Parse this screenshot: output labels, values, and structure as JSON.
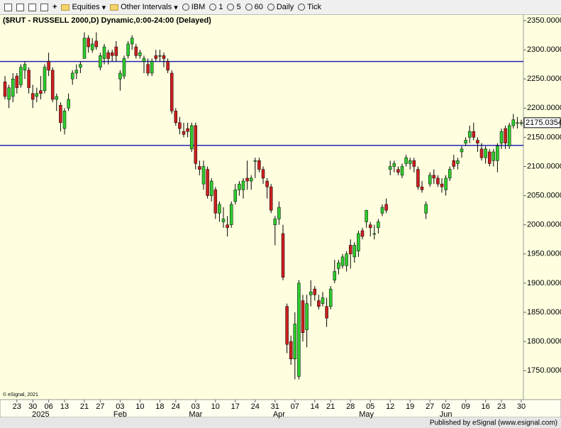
{
  "toolbar": {
    "items": [
      "Equities",
      "Other Intervals",
      "IBM",
      "1",
      "5",
      "60",
      "Daily",
      "Tick"
    ]
  },
  "chart_data": {
    "type": "candlestick",
    "title": "($RUT - RUSSELL 2000,D) Dynamic,0:00-24:00 (Delayed)",
    "watermark": "© eSignal, 2021",
    "up_color": "#2ecc2e",
    "down_color": "#cc1f1f",
    "ohlc": [
      [
        2245,
        2255,
        2215,
        2220
      ],
      [
        2215,
        2240,
        2200,
        2235
      ],
      [
        2220,
        2260,
        2210,
        2250
      ],
      [
        2255,
        2260,
        2225,
        2235
      ],
      [
        2240,
        2275,
        2235,
        2270
      ],
      [
        2265,
        2280,
        2250,
        2275
      ],
      [
        2265,
        2270,
        2225,
        2235
      ],
      [
        2225,
        2240,
        2200,
        2215
      ],
      [
        2220,
        2235,
        2210,
        2225
      ],
      [
        2230,
        2255,
        2215,
        2225
      ],
      [
        2230,
        2275,
        2225,
        2270
      ],
      [
        2280,
        2295,
        2255,
        2265
      ],
      [
        2265,
        2270,
        2210,
        2215
      ],
      [
        2215,
        2225,
        2195,
        2220
      ],
      [
        2205,
        2210,
        2160,
        2175
      ],
      [
        2165,
        2200,
        2155,
        2195
      ],
      [
        2200,
        2225,
        2195,
        2215
      ],
      [
        2250,
        2265,
        2240,
        2260
      ],
      [
        2260,
        2275,
        2250,
        2265
      ],
      [
        2270,
        2280,
        2260,
        2275
      ],
      [
        2285,
        2330,
        2285,
        2320
      ],
      [
        2320,
        2325,
        2295,
        2305
      ],
      [
        2300,
        2320,
        2295,
        2310
      ],
      [
        2315,
        2330,
        2300,
        2305
      ],
      [
        2270,
        2295,
        2265,
        2290
      ],
      [
        2285,
        2310,
        2275,
        2305
      ],
      [
        2295,
        2300,
        2275,
        2285
      ],
      [
        2295,
        2300,
        2280,
        2290
      ],
      [
        2305,
        2315,
        2280,
        2290
      ],
      [
        2250,
        2265,
        2230,
        2260
      ],
      [
        2255,
        2290,
        2250,
        2285
      ],
      [
        2290,
        2315,
        2285,
        2310
      ],
      [
        2310,
        2325,
        2300,
        2320
      ],
      [
        2305,
        2310,
        2285,
        2290
      ],
      [
        2290,
        2300,
        2285,
        2295
      ],
      [
        2280,
        2290,
        2260,
        2285
      ],
      [
        2275,
        2285,
        2255,
        2260
      ],
      [
        2260,
        2285,
        2255,
        2280
      ],
      [
        2290,
        2300,
        2280,
        2285
      ],
      [
        2290,
        2300,
        2280,
        2290
      ],
      [
        2290,
        2295,
        2270,
        2285
      ],
      [
        2280,
        2285,
        2260,
        2265
      ],
      [
        2260,
        2265,
        2190,
        2195
      ],
      [
        2195,
        2200,
        2170,
        2175
      ],
      [
        2175,
        2185,
        2155,
        2165
      ],
      [
        2160,
        2175,
        2150,
        2155
      ],
      [
        2165,
        2175,
        2150,
        2160
      ],
      [
        2130,
        2175,
        2125,
        2170
      ],
      [
        2170,
        2175,
        2095,
        2105
      ],
      [
        2100,
        2110,
        2085,
        2095
      ],
      [
        2070,
        2110,
        2060,
        2100
      ],
      [
        2095,
        2100,
        2045,
        2050
      ],
      [
        2050,
        2080,
        2040,
        2075
      ],
      [
        2060,
        2065,
        2010,
        2020
      ],
      [
        2020,
        2040,
        2005,
        2035
      ],
      [
        2005,
        2030,
        1995,
        2010
      ],
      [
        2000,
        2015,
        1980,
        1995
      ],
      [
        2000,
        2040,
        1995,
        2035
      ],
      [
        2040,
        2070,
        2035,
        2060
      ],
      [
        2060,
        2075,
        2050,
        2070
      ],
      [
        2060,
        2080,
        2045,
        2075
      ],
      [
        2080,
        2110,
        2060,
        2075
      ],
      [
        2075,
        2085,
        2060,
        2080
      ],
      [
        2110,
        2115,
        2080,
        2110
      ],
      [
        2110,
        2115,
        2090,
        2095
      ],
      [
        2095,
        2100,
        2070,
        2080
      ],
      [
        2075,
        2080,
        2045,
        2065
      ],
      [
        2065,
        2070,
        2020,
        2025
      ],
      [
        2000,
        2015,
        1965,
        2010
      ],
      [
        2010,
        2040,
        2000,
        2030
      ],
      [
        1985,
        2000,
        1905,
        1910
      ],
      [
        1860,
        1865,
        1780,
        1795
      ],
      [
        1800,
        1810,
        1760,
        1770
      ],
      [
        1770,
        1850,
        1735,
        1830
      ],
      [
        1740,
        1905,
        1735,
        1900
      ],
      [
        1870,
        1880,
        1800,
        1815
      ],
      [
        1820,
        1880,
        1790,
        1865
      ],
      [
        1880,
        1905,
        1860,
        1885
      ],
      [
        1890,
        1895,
        1870,
        1880
      ],
      [
        1870,
        1880,
        1855,
        1860
      ],
      [
        1865,
        1885,
        1860,
        1875
      ],
      [
        1860,
        1875,
        1825,
        1840
      ],
      [
        1860,
        1895,
        1855,
        1890
      ],
      [
        1905,
        1940,
        1900,
        1920
      ],
      [
        1925,
        1940,
        1915,
        1935
      ],
      [
        1930,
        1950,
        1925,
        1945
      ],
      [
        1930,
        1955,
        1920,
        1950
      ],
      [
        1965,
        1975,
        1925,
        1950
      ],
      [
        1945,
        1970,
        1935,
        1965
      ],
      [
        1955,
        1990,
        1945,
        1985
      ],
      [
        1990,
        1995,
        1975,
        1980
      ],
      [
        2005,
        2025,
        1995,
        2025
      ],
      [
        2000,
        2005,
        1980,
        1995
      ],
      [
        1985,
        2000,
        1975,
        1985
      ],
      [
        1995,
        2010,
        1985,
        2005
      ],
      [
        2020,
        2035,
        2015,
        2030
      ],
      [
        2035,
        2045,
        2020,
        2025
      ],
      [
        2095,
        2110,
        2085,
        2100
      ],
      [
        2100,
        2110,
        2090,
        2105
      ],
      [
        2095,
        2100,
        2085,
        2090
      ],
      [
        2085,
        2105,
        2080,
        2100
      ],
      [
        2105,
        2120,
        2100,
        2115
      ],
      [
        2105,
        2115,
        2095,
        2110
      ],
      [
        2110,
        2115,
        2090,
        2100
      ],
      [
        2095,
        2100,
        2060,
        2065
      ],
      [
        2065,
        2075,
        2055,
        2060
      ],
      [
        2020,
        2040,
        2010,
        2035
      ],
      [
        2070,
        2090,
        2065,
        2085
      ],
      [
        2085,
        2095,
        2070,
        2080
      ],
      [
        2080,
        2085,
        2065,
        2070
      ],
      [
        2070,
        2080,
        2055,
        2065
      ],
      [
        2060,
        2085,
        2050,
        2080
      ],
      [
        2080,
        2100,
        2075,
        2095
      ],
      [
        2110,
        2120,
        2095,
        2100
      ],
      [
        2105,
        2115,
        2095,
        2110
      ],
      [
        2125,
        2135,
        2115,
        2130
      ],
      [
        2140,
        2150,
        2135,
        2145
      ],
      [
        2150,
        2170,
        2140,
        2160
      ],
      [
        2160,
        2175,
        2145,
        2150
      ],
      [
        2145,
        2150,
        2125,
        2140
      ],
      [
        2130,
        2140,
        2110,
        2115
      ],
      [
        2115,
        2135,
        2105,
        2130
      ],
      [
        2125,
        2130,
        2100,
        2105
      ],
      [
        2110,
        2130,
        2100,
        2125
      ],
      [
        2110,
        2140,
        2090,
        2135
      ],
      [
        2140,
        2165,
        2130,
        2160
      ],
      [
        2165,
        2170,
        2130,
        2140
      ],
      [
        2135,
        2175,
        2130,
        2170
      ],
      [
        2170,
        2190,
        2165,
        2180
      ],
      [
        2175,
        2185,
        2165,
        2175
      ],
      [
        2175,
        2180,
        2170,
        2175
      ]
    ],
    "hlines": [
      2280,
      2136
    ],
    "hline_color": "#2323b4",
    "last_price": 2175.0354,
    "ylim": [
      1704,
      2361
    ],
    "yticks": [
      {
        "value": 1750,
        "label": "1750.0000"
      },
      {
        "value": 1800,
        "label": "1800.0000"
      },
      {
        "value": 1850,
        "label": "1850.0000"
      },
      {
        "value": 1900,
        "label": "1900.0000"
      },
      {
        "value": 1950,
        "label": "1950.0000"
      },
      {
        "value": 2000,
        "label": "2000.0000"
      },
      {
        "value": 2050,
        "label": "2050.0000"
      },
      {
        "value": 2100,
        "label": "2100.0000"
      },
      {
        "value": 2150,
        "label": "2150.0000"
      },
      {
        "value": 2200,
        "label": "2200.0000"
      },
      {
        "value": 2250,
        "label": "2250.0000"
      },
      {
        "value": 2300,
        "label": "2300.0000"
      },
      {
        "value": 2350,
        "label": "2350.0000"
      }
    ],
    "xticks": [
      {
        "value": 3,
        "label": "23"
      },
      {
        "value": 7,
        "label": "30"
      },
      {
        "value": 11,
        "label": "06"
      },
      {
        "value": 15,
        "label": "13"
      },
      {
        "value": 20,
        "label": "21"
      },
      {
        "value": 24,
        "label": "27"
      },
      {
        "value": 29,
        "label": "03"
      },
      {
        "value": 34,
        "label": "10"
      },
      {
        "value": 39,
        "label": "18"
      },
      {
        "value": 43,
        "label": "24"
      },
      {
        "value": 48,
        "label": "03"
      },
      {
        "value": 53,
        "label": "10"
      },
      {
        "value": 58,
        "label": "17"
      },
      {
        "value": 63,
        "label": "24"
      },
      {
        "value": 68,
        "label": "31"
      },
      {
        "value": 73,
        "label": "07"
      },
      {
        "value": 78,
        "label": "14"
      },
      {
        "value": 82,
        "label": "21"
      },
      {
        "value": 87,
        "label": "28"
      },
      {
        "value": 92,
        "label": "05"
      },
      {
        "value": 97,
        "label": "12"
      },
      {
        "value": 102,
        "label": "19"
      },
      {
        "value": 107,
        "label": "27"
      },
      {
        "value": 111,
        "label": "02"
      },
      {
        "value": 116,
        "label": "09"
      },
      {
        "value": 121,
        "label": "16"
      },
      {
        "value": 125,
        "label": "23"
      },
      {
        "value": 130,
        "label": "30"
      }
    ],
    "months": [
      {
        "value": 9,
        "label": "2025"
      },
      {
        "value": 29,
        "label": "Feb"
      },
      {
        "value": 48,
        "label": "Mar"
      },
      {
        "value": 69,
        "label": "Apr"
      },
      {
        "value": 91,
        "label": "May"
      },
      {
        "value": 111,
        "label": "Jun"
      }
    ]
  },
  "footer": "Published by eSignal (www.esignal.com)"
}
